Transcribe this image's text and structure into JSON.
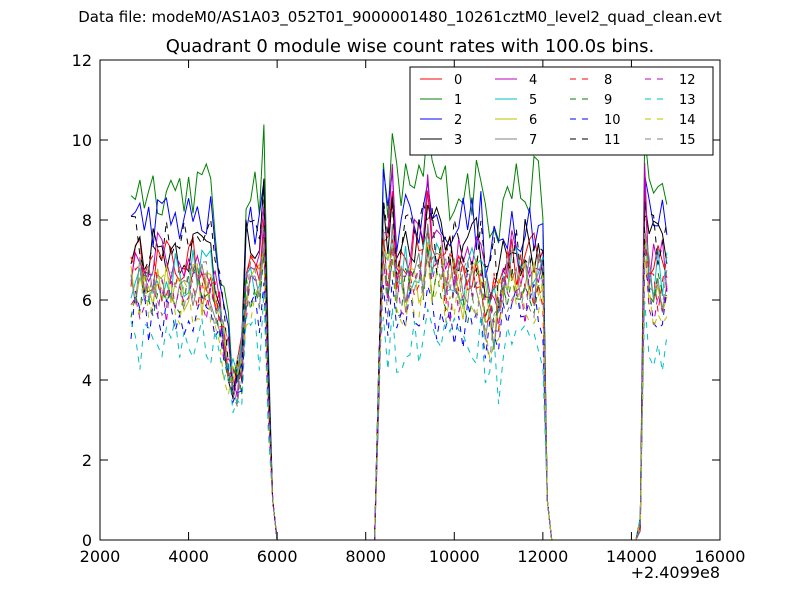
{
  "suptitle": "Data file: modeM0/AS1A03_052T01_9000001480_10261cztM0_level2_quad_clean.evt",
  "chart_data": {
    "type": "line",
    "title": "Quadrant 0 module wise count rates with 100.0s bins.",
    "xlabel": "",
    "ylabel": "",
    "xlim": [
      2000,
      16000
    ],
    "ylim": [
      0,
      12
    ],
    "x_offset_label": "+2.4099e8",
    "x_ticks": [
      2000,
      4000,
      6000,
      8000,
      10000,
      12000,
      14000,
      16000
    ],
    "y_ticks": [
      0,
      2,
      4,
      6,
      8,
      10,
      12
    ],
    "legend_position": "top-right",
    "legend_columns": 4,
    "segments": [
      {
        "x_start": 2700,
        "x_end": 5900,
        "x_step": 100
      },
      {
        "x_start": 8300,
        "x_end": 12100,
        "x_step": 100
      },
      {
        "x_start": 14200,
        "x_end": 14800,
        "x_step": 100
      }
    ],
    "zero_x": [
      6000,
      6100,
      6200,
      6300,
      6400,
      6500,
      6600,
      6700,
      6800,
      6900,
      7000,
      7100,
      7200,
      7300,
      7400,
      7500,
      7600,
      7700,
      7800,
      7900,
      8000,
      8100,
      8200,
      12200,
      12300,
      12400,
      12500,
      12600,
      12700,
      12800,
      12900,
      13000,
      13100,
      13200,
      13300,
      13400,
      13500,
      13600,
      13700,
      13800,
      13900,
      14000,
      14100
    ],
    "series": [
      {
        "name": "0",
        "color": "#ff0000",
        "dashed": false,
        "base": 6.9,
        "peak": 8.9
      },
      {
        "name": "1",
        "color": "#008000",
        "dashed": false,
        "base": 8.8,
        "peak": 10.5
      },
      {
        "name": "2",
        "color": "#0000ff",
        "dashed": false,
        "base": 8.0,
        "peak": 9.3
      },
      {
        "name": "3",
        "color": "#000000",
        "dashed": false,
        "base": 7.3,
        "peak": 8.6
      },
      {
        "name": "4",
        "color": "#bf00bf",
        "dashed": false,
        "base": 7.0,
        "peak": 9.6
      },
      {
        "name": "5",
        "color": "#00bfbf",
        "dashed": false,
        "base": 6.6,
        "peak": 8.0
      },
      {
        "name": "6",
        "color": "#bfbf00",
        "dashed": false,
        "base": 6.3,
        "peak": 7.8
      },
      {
        "name": "7",
        "color": "#808080",
        "dashed": false,
        "base": 6.5,
        "peak": 8.0
      },
      {
        "name": "8",
        "color": "#ff0000",
        "dashed": true,
        "base": 6.5,
        "peak": 7.8
      },
      {
        "name": "9",
        "color": "#008000",
        "dashed": true,
        "base": 6.2,
        "peak": 7.4
      },
      {
        "name": "10",
        "color": "#0000ff",
        "dashed": true,
        "base": 5.6,
        "peak": 6.8
      },
      {
        "name": "11",
        "color": "#000000",
        "dashed": true,
        "base": 7.4,
        "peak": 8.4
      },
      {
        "name": "12",
        "color": "#bf00bf",
        "dashed": true,
        "base": 6.1,
        "peak": 7.5
      },
      {
        "name": "13",
        "color": "#00bfbf",
        "dashed": true,
        "base": 4.9,
        "peak": 6.0
      },
      {
        "name": "14",
        "color": "#bfbf00",
        "dashed": true,
        "base": 6.0,
        "peak": 7.2
      },
      {
        "name": "15",
        "color": "#808080",
        "dashed": true,
        "base": 6.3,
        "peak": 7.6
      }
    ]
  }
}
